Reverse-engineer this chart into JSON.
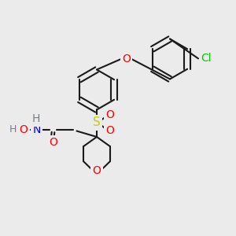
{
  "background_color": "#ebebeb",
  "bond_color": "#1a1a1a",
  "atom_colors": {
    "O": "#ff0000",
    "N": "#0000ff",
    "S": "#cccc00",
    "Cl": "#00cc00",
    "H": "#708090",
    "C": "#1a1a1a"
  },
  "font_size": 9,
  "line_width": 1.5
}
